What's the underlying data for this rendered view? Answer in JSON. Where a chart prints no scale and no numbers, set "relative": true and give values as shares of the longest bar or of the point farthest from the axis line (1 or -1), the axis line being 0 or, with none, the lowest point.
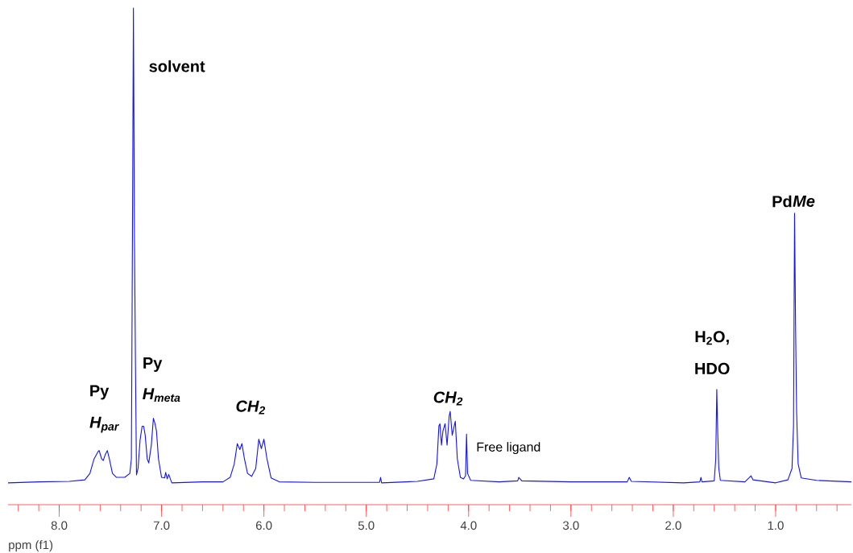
{
  "chart_data": {
    "type": "line",
    "relative": true,
    "xlabel": "ppm (f1)",
    "xlim": [
      8.5,
      0.26
    ],
    "xticks": [
      {
        "value": 8.4,
        "label": null
      },
      {
        "value": 8.2,
        "label": null
      },
      {
        "value": 8.0,
        "label": "8.0"
      },
      {
        "value": 7.8,
        "label": null
      },
      {
        "value": 7.6,
        "label": null
      },
      {
        "value": 7.4,
        "label": null
      },
      {
        "value": 7.2,
        "label": null
      },
      {
        "value": 7.0,
        "label": "7.0"
      },
      {
        "value": 6.8,
        "label": null
      },
      {
        "value": 6.6,
        "label": null
      },
      {
        "value": 6.4,
        "label": null
      },
      {
        "value": 6.2,
        "label": null
      },
      {
        "value": 6.0,
        "label": "6.0"
      },
      {
        "value": 5.8,
        "label": null
      },
      {
        "value": 5.6,
        "label": null
      },
      {
        "value": 5.4,
        "label": null
      },
      {
        "value": 5.2,
        "label": null
      },
      {
        "value": 5.0,
        "label": "5.0"
      },
      {
        "value": 4.8,
        "label": null
      },
      {
        "value": 4.6,
        "label": null
      },
      {
        "value": 4.4,
        "label": null
      },
      {
        "value": 4.2,
        "label": null
      },
      {
        "value": 4.0,
        "label": "4.0"
      },
      {
        "value": 3.8,
        "label": null
      },
      {
        "value": 3.6,
        "label": null
      },
      {
        "value": 3.4,
        "label": null
      },
      {
        "value": 3.2,
        "label": null
      },
      {
        "value": 3.0,
        "label": "3.0"
      },
      {
        "value": 2.8,
        "label": null
      },
      {
        "value": 2.6,
        "label": null
      },
      {
        "value": 2.4,
        "label": null
      },
      {
        "value": 2.2,
        "label": null
      },
      {
        "value": 2.0,
        "label": "2.0"
      },
      {
        "value": 1.8,
        "label": null
      },
      {
        "value": 1.6,
        "label": null
      },
      {
        "value": 1.4,
        "label": null
      },
      {
        "value": 1.2,
        "label": null
      },
      {
        "value": 1.0,
        "label": "1.0"
      },
      {
        "value": 0.8,
        "label": null
      },
      {
        "value": 0.6,
        "label": null
      },
      {
        "value": 0.4,
        "label": null
      }
    ],
    "series": [
      {
        "color": "#1414f0",
        "x": [
          8.5,
          8.2,
          7.9,
          7.75,
          7.7,
          7.66,
          7.62,
          7.61,
          7.585,
          7.57,
          7.55,
          7.53,
          7.51,
          7.48,
          7.44,
          7.36,
          7.31,
          7.295,
          7.285,
          7.275,
          7.265,
          7.255,
          7.245,
          7.23,
          7.21,
          7.19,
          7.175,
          7.16,
          7.14,
          7.125,
          7.1,
          7.08,
          7.065,
          7.05,
          7.03,
          7.0,
          6.97,
          6.96,
          6.945,
          6.93,
          6.9,
          6.6,
          6.4,
          6.33,
          6.29,
          6.26,
          6.235,
          6.215,
          6.19,
          6.16,
          6.12,
          6.08,
          6.05,
          6.025,
          6.0,
          5.97,
          5.93,
          5.85,
          5.5,
          4.87,
          4.86,
          4.85,
          4.5,
          4.34,
          4.31,
          4.29,
          4.28,
          4.265,
          4.25,
          4.23,
          4.21,
          4.19,
          4.18,
          4.16,
          4.13,
          4.11,
          4.08,
          4.05,
          4.03,
          4.02,
          4.01,
          3.98,
          3.7,
          3.52,
          3.51,
          3.48,
          3.0,
          2.45,
          2.43,
          2.41,
          1.9,
          1.74,
          1.73,
          1.72,
          1.6,
          1.585,
          1.575,
          1.565,
          1.555,
          1.54,
          1.3,
          1.26,
          1.24,
          1.22,
          1.0,
          0.88,
          0.84,
          0.825,
          0.815,
          0.805,
          0.795,
          0.78,
          0.75,
          0.6,
          0.26
        ],
        "values": [
          0.044,
          0.046,
          0.047,
          0.05,
          0.063,
          0.092,
          0.107,
          0.109,
          0.092,
          0.089,
          0.101,
          0.109,
          0.092,
          0.063,
          0.055,
          0.055,
          0.063,
          0.092,
          0.522,
          1.0,
          0.541,
          0.283,
          0.06,
          0.073,
          0.13,
          0.158,
          0.158,
          0.14,
          0.092,
          0.084,
          0.12,
          0.174,
          0.164,
          0.149,
          0.092,
          0.055,
          0.054,
          0.065,
          0.052,
          0.061,
          0.044,
          0.046,
          0.046,
          0.055,
          0.082,
          0.123,
          0.111,
          0.123,
          0.092,
          0.063,
          0.057,
          0.073,
          0.132,
          0.113,
          0.132,
          0.092,
          0.054,
          0.046,
          0.045,
          0.045,
          0.055,
          0.044,
          0.047,
          0.052,
          0.082,
          0.159,
          0.163,
          0.12,
          0.149,
          0.163,
          0.12,
          0.178,
          0.188,
          0.14,
          0.168,
          0.092,
          0.055,
          0.052,
          0.058,
          0.142,
          0.063,
          0.049,
          0.046,
          0.048,
          0.055,
          0.048,
          0.046,
          0.046,
          0.055,
          0.047,
          0.044,
          0.046,
          0.055,
          0.046,
          0.048,
          0.092,
          0.232,
          0.14,
          0.073,
          0.049,
          0.046,
          0.054,
          0.058,
          0.05,
          0.044,
          0.05,
          0.073,
          0.159,
          0.587,
          0.359,
          0.187,
          0.082,
          0.054,
          0.049,
          0.046
        ]
      }
    ],
    "annotations": [
      "solvent",
      "Py",
      "H$_{meta}$",
      "Py",
      "H$_{par}$",
      "CH$_{2}$",
      "CH$_{2}$",
      "Free ligand",
      "H$_{2}$O,",
      "HDO",
      "Pd",
      "Me"
    ]
  }
}
